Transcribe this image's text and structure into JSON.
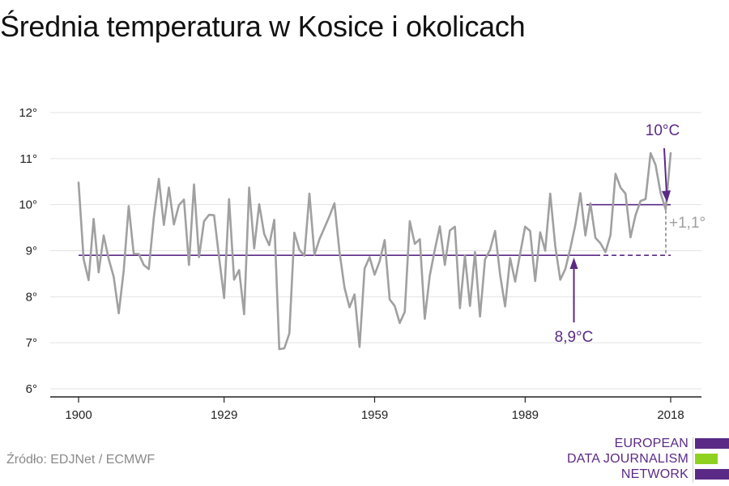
{
  "title": "Średnia temperatura w Kosice i okolicach",
  "source": "Źródło: EDJNet / ECMWF",
  "logo": {
    "lines": [
      "EUROPEAN",
      "DATA JOURNALISM",
      "NETWORK"
    ],
    "colors": {
      "purple": "#5b2a86",
      "green": "#8fd11f"
    }
  },
  "colors": {
    "line": "#a0a0a0",
    "accent": "#5b2a86",
    "delta": "#a0a0a0",
    "axis": "#222222"
  },
  "annotations": {
    "recent_label": "10°C",
    "baseline_label": "8,9°C",
    "delta_label": "+1,1°"
  },
  "chart_data": {
    "type": "line",
    "title": "Średnia temperatura w Kosice i okolicach",
    "xlabel": "",
    "ylabel": "",
    "xlim": [
      1900,
      2018
    ],
    "ylim": [
      6,
      12
    ],
    "x_ticks": [
      1900,
      1929,
      1959,
      1989,
      2018
    ],
    "x_tick_labels": [
      "1900",
      "1929",
      "1959",
      "1989",
      "2018"
    ],
    "y_ticks": [
      6,
      7,
      8,
      9,
      10,
      11,
      12
    ],
    "y_tick_labels": [
      "6°",
      "7°",
      "8°",
      "9°",
      "10°",
      "11°",
      "12°"
    ],
    "grid": "horizontal",
    "series": [
      {
        "x": [
          1900,
          1901,
          1902,
          1903,
          1904,
          1905,
          1906,
          1907,
          1908,
          1909,
          1910,
          1911,
          1912,
          1913,
          1914,
          1915,
          1916,
          1917,
          1918,
          1919,
          1920,
          1921,
          1922,
          1923,
          1924,
          1925,
          1926,
          1927,
          1928,
          1929,
          1930,
          1931,
          1932,
          1933,
          1934,
          1935,
          1936,
          1937,
          1938,
          1939,
          1940,
          1941,
          1942,
          1943,
          1944,
          1945,
          1946,
          1947,
          1948,
          1949,
          1950,
          1951,
          1952,
          1953,
          1954,
          1955,
          1956,
          1957,
          1958,
          1959,
          1960,
          1961,
          1962,
          1963,
          1964,
          1965,
          1966,
          1967,
          1968,
          1969,
          1970,
          1971,
          1972,
          1973,
          1974,
          1975,
          1976,
          1977,
          1978,
          1979,
          1980,
          1981,
          1982,
          1983,
          1984,
          1985,
          1986,
          1987,
          1988,
          1989,
          1990,
          1991,
          1992,
          1993,
          1994,
          1995,
          1996,
          1997,
          1998,
          1999,
          2000,
          2001,
          2002,
          2003,
          2004,
          2005,
          2006,
          2007,
          2008,
          2009,
          2010,
          2011,
          2012,
          2013,
          2014,
          2015,
          2016,
          2017,
          2018
        ],
        "values": [
          10.48,
          8.82,
          8.36,
          9.69,
          8.53,
          9.33,
          8.82,
          8.43,
          7.64,
          8.58,
          9.97,
          8.93,
          8.93,
          8.69,
          8.6,
          9.72,
          10.56,
          9.56,
          10.37,
          9.57,
          9.99,
          10.11,
          8.69,
          10.44,
          8.86,
          9.64,
          9.78,
          9.77,
          8.85,
          7.97,
          10.12,
          8.37,
          8.58,
          7.62,
          10.37,
          9.05,
          10.01,
          9.36,
          9.12,
          9.67,
          6.86,
          6.88,
          7.2,
          9.39,
          9.02,
          8.89,
          10.24,
          8.91,
          9.25,
          9.5,
          9.75,
          10.03,
          8.98,
          8.2,
          7.77,
          8.05,
          6.91,
          8.61,
          8.86,
          8.48,
          8.77,
          9.23,
          7.94,
          7.8,
          7.43,
          7.67,
          9.64,
          9.15,
          9.25,
          7.52,
          8.46,
          9.02,
          9.53,
          8.69,
          9.44,
          9.52,
          7.75,
          8.9,
          7.8,
          8.97,
          7.57,
          8.81,
          9.02,
          9.43,
          8.48,
          7.79,
          8.84,
          8.33,
          8.94,
          9.52,
          9.43,
          8.34,
          9.4,
          9.0,
          10.24,
          9.1,
          8.37,
          8.6,
          9.05,
          9.56,
          10.25,
          9.33,
          10.03,
          9.28,
          9.16,
          8.97,
          9.34,
          10.67,
          10.37,
          10.24,
          9.29,
          9.77,
          10.08,
          10.12,
          11.12,
          10.86,
          10.25,
          9.9,
          11.12
        ]
      }
    ],
    "reference_lines": [
      {
        "label": "8,9°C",
        "value": 8.9,
        "x_from": 1900,
        "x_to": 2018
      },
      {
        "label": "10°C",
        "value": 10.0,
        "x_from": 2003,
        "x_to": 2018
      }
    ]
  }
}
